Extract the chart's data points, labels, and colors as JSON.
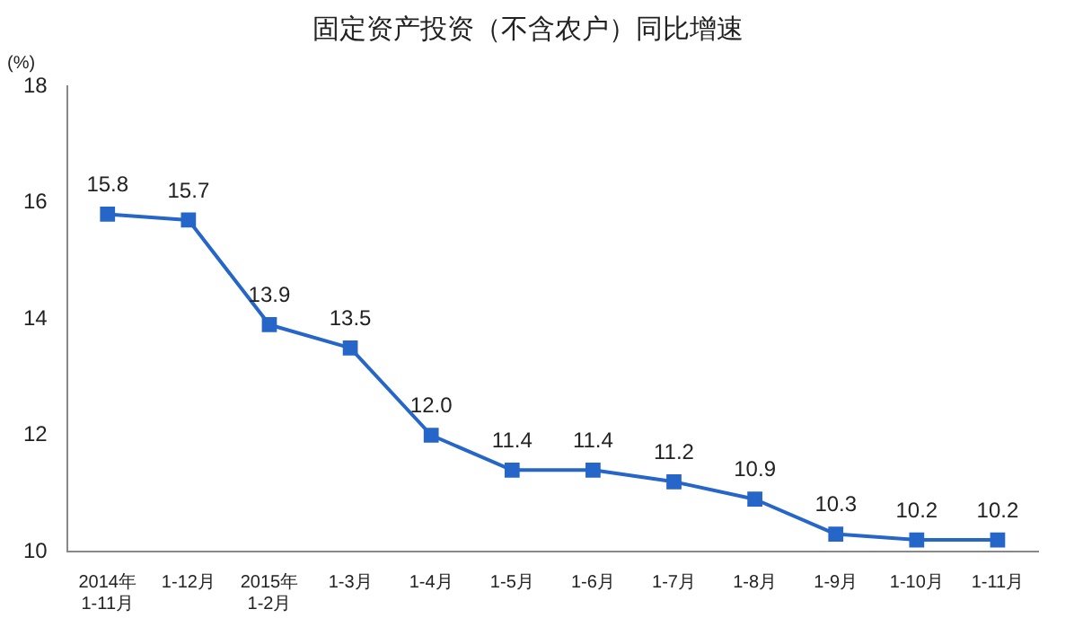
{
  "chart_data": {
    "type": "line",
    "title": "固定资产投资（不含农户）同比增速",
    "ylabel": "(%)",
    "categories": [
      "2014年\n1-11月",
      "1-12月",
      "2015年\n1-2月",
      "1-3月",
      "1-4月",
      "1-5月",
      "1-6月",
      "1-7月",
      "1-8月",
      "1-9月",
      "1-10月",
      "1-11月"
    ],
    "series": [
      {
        "color": "#2566c8",
        "values": [
          15.8,
          15.7,
          13.9,
          13.5,
          12.0,
          11.4,
          11.4,
          11.2,
          10.9,
          10.3,
          10.2,
          10.2
        ],
        "value_labels": [
          "15.8",
          "15.7",
          "13.9",
          "13.5",
          "12.0",
          "11.4",
          "11.4",
          "11.2",
          "10.9",
          "10.3",
          "10.2",
          "10.2"
        ]
      }
    ],
    "ylim": [
      10,
      18
    ],
    "yticks": [
      10,
      12,
      14,
      16,
      18
    ],
    "grid": false,
    "legend": false,
    "marker": "square",
    "line_style": "solid"
  }
}
